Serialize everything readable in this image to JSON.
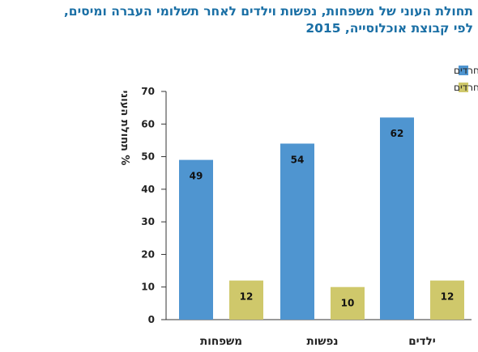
{
  "colors": {
    "haredim": "#4f95d0",
    "nonharedi": "#cfc86b",
    "title": "#1a6fa5"
  },
  "chart_data": {
    "type": "bar",
    "title": "תחולת העוני של משפחות, נפשות וילדים לאחר תשלומי העברה ומיסים,",
    "title_line2": "לפי קבוצת אוכלוסייה, 2015",
    "ylabel": "% תחולת העוני",
    "ylim": [
      0,
      70
    ],
    "yticks": [
      "0",
      "10",
      "20",
      "30",
      "40",
      "50",
      "60",
      "70"
    ],
    "categories": [
      "ילדים",
      "נפשות",
      "משפחות"
    ],
    "series": [
      {
        "name": "חרדים",
        "values": [
          62,
          54,
          49
        ]
      },
      {
        "name": "יהודים לא־חרדים",
        "values": [
          12,
          10,
          12
        ]
      }
    ],
    "data_labels": [
      [
        "62",
        "54",
        "49"
      ],
      [
        "12",
        "10",
        "12"
      ]
    ],
    "legend_position": "top-right",
    "grid": false
  }
}
